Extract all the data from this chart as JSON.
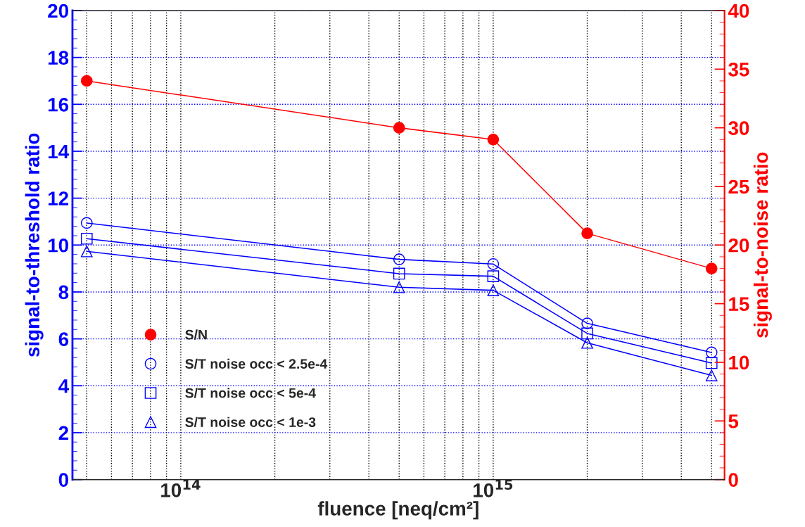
{
  "chart_data": {
    "type": "line",
    "xlabel": "fluence [neq/cm²]",
    "ylabel": "signal-to-threshold ratio",
    "y2label": "signal-to-noise ratio",
    "x": [
      50000000000000.0,
      500000000000000.0,
      1000000000000000.0,
      2000000000000000.0,
      5000000000000000.0
    ],
    "series": [
      {
        "name": "S/N",
        "color": "#ff0000",
        "marker": "circle",
        "axis": "y2",
        "values": [
          34,
          30,
          29,
          21,
          18
        ]
      },
      {
        "name": "S/T noise occ < 2.5e-4",
        "color": "#0000ff",
        "marker": "circle",
        "values": [
          10.94,
          9.39,
          9.19,
          6.66,
          5.42
        ]
      },
      {
        "name": "S/T noise occ < 5e-4",
        "color": "#0000ff",
        "marker": "square",
        "values": [
          10.27,
          8.78,
          8.67,
          6.23,
          4.97
        ]
      },
      {
        "name": "S/T noise occ < 1e-3",
        "color": "#0000ff",
        "marker": "triangle",
        "values": [
          9.73,
          8.2,
          8.07,
          5.83,
          4.44
        ]
      }
    ],
    "log": "x",
    "xlim": [
      45000000000000.0,
      5500000000000000.0
    ],
    "xticks": [
      {
        "value": 50000000000000.0,
        "label": null
      },
      {
        "value": 60000000000000.0,
        "label": null
      },
      {
        "value": 70000000000000.0,
        "label": null
      },
      {
        "value": 80000000000000.0,
        "label": null
      },
      {
        "value": 90000000000000.0,
        "label": null
      },
      {
        "value": 100000000000000.0,
        "label": "10$^{14}$"
      },
      {
        "value": 200000000000000.0,
        "label": null
      },
      {
        "value": 300000000000000.0,
        "label": null
      },
      {
        "value": 400000000000000.0,
        "label": null
      },
      {
        "value": 500000000000000.0,
        "label": null
      },
      {
        "value": 600000000000000.0,
        "label": null
      },
      {
        "value": 700000000000000.0,
        "label": null
      },
      {
        "value": 800000000000000.0,
        "label": null
      },
      {
        "value": 900000000000000.0,
        "label": null
      },
      {
        "value": 1000000000000000.0,
        "label": "10$^{15}$"
      },
      {
        "value": 2000000000000000.0,
        "label": null
      },
      {
        "value": 3000000000000000.0,
        "label": null
      },
      {
        "value": 4000000000000000.0,
        "label": null
      },
      {
        "value": 5000000000000000.0,
        "label": null
      }
    ],
    "ylim": [
      0,
      20
    ],
    "yticks": [
      0,
      2,
      4,
      6,
      8,
      10,
      12,
      14,
      16,
      18,
      20
    ],
    "y2lim": [
      0,
      40
    ],
    "y2ticks": [
      0,
      5,
      10,
      15,
      20,
      25,
      30,
      35,
      40
    ],
    "grid": true,
    "legend": "bottom left",
    "line_style": "solid"
  }
}
